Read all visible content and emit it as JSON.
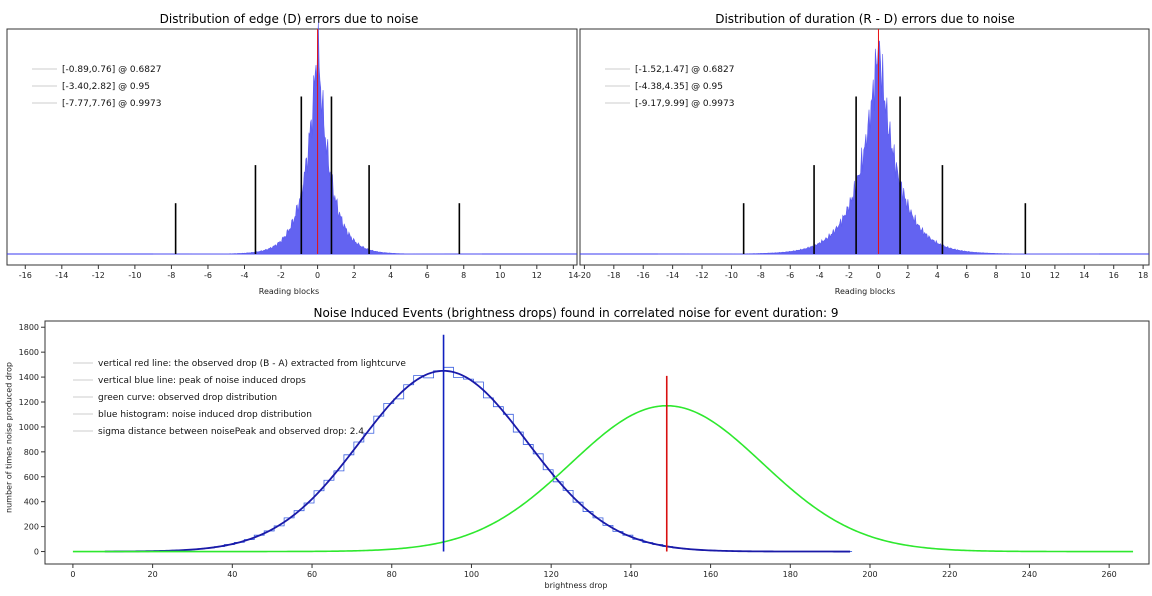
{
  "chart_data": [
    {
      "type": "bar",
      "title": "Distribution of edge (D) errors due to noise",
      "xlabel": "Reading blocks",
      "ylabel": "",
      "xlim": [
        -17,
        14.2
      ],
      "xticks": [
        -16,
        -14,
        -12,
        -10,
        -8,
        -6,
        -4,
        -2,
        0,
        2,
        4,
        6,
        8,
        10,
        12,
        14
      ],
      "histogram": {
        "center": 0,
        "scale": 0.72,
        "range": [
          -9,
          9
        ],
        "color": "#5b5bf0"
      },
      "center_line": {
        "x": 0,
        "color": "#e81010"
      },
      "intervals": [
        {
          "lo": -0.89,
          "hi": 0.76,
          "height": 0.62,
          "label": "[-0.89,0.76] @ 0.6827"
        },
        {
          "lo": -3.4,
          "hi": 2.82,
          "height": 0.35,
          "label": "[-3.40,2.82] @ 0.95"
        },
        {
          "lo": -7.77,
          "hi": 7.76,
          "height": 0.2,
          "label": "[-7.77,7.76] @ 0.9973"
        }
      ]
    },
    {
      "type": "bar",
      "title": "Distribution of duration (R - D) errors due to noise",
      "xlabel": "Reading blocks",
      "ylabel": "",
      "xlim": [
        -20.3,
        18.4
      ],
      "xticks": [
        -20,
        -18,
        -16,
        -14,
        -12,
        -10,
        -8,
        -6,
        -4,
        -2,
        0,
        2,
        4,
        6,
        8,
        10,
        12,
        14,
        16,
        18
      ],
      "histogram": {
        "center": 0,
        "scale": 1.35,
        "range": [
          -15,
          15
        ],
        "color": "#5b5bf0"
      },
      "center_line": {
        "x": 0,
        "color": "#e81010"
      },
      "intervals": [
        {
          "lo": -1.52,
          "hi": 1.47,
          "height": 0.62,
          "label": "[-1.52,1.47] @ 0.6827"
        },
        {
          "lo": -4.38,
          "hi": 4.35,
          "height": 0.35,
          "label": "[-4.38,4.35] @ 0.95"
        },
        {
          "lo": -9.17,
          "hi": 9.99,
          "height": 0.2,
          "label": "[-9.17,9.99] @ 0.9973"
        }
      ]
    },
    {
      "type": "line",
      "title": "Noise Induced Events (brightness drops) found in correlated noise for event duration: 9",
      "xlabel": "brightness drop",
      "ylabel": "number of times noise produced drop",
      "xlim": [
        -7,
        270
      ],
      "ylim": [
        -100,
        1850
      ],
      "xticks": [
        0,
        20,
        40,
        60,
        80,
        100,
        120,
        140,
        160,
        180,
        200,
        220,
        240,
        260
      ],
      "yticks": [
        0,
        200,
        400,
        600,
        800,
        1000,
        1200,
        1400,
        1600,
        1800
      ],
      "series": [
        {
          "name": "blue histogram: noise induced drop distribution",
          "kind": "histogram",
          "color": "#3a5fe0",
          "peak": 93,
          "sigma": 21,
          "amplitude": 1450,
          "range": [
            8,
            195
          ]
        },
        {
          "name": "blue curve",
          "kind": "gaussian",
          "color": "#1a1aa8",
          "peak": 93,
          "sigma": 21,
          "amplitude": 1450,
          "range": [
            8,
            195
          ]
        },
        {
          "name": "green curve: observed drop distribution",
          "kind": "gaussian",
          "color": "#2ee82e",
          "peak": 149,
          "sigma": 24,
          "amplitude": 1170,
          "range": [
            0,
            266
          ]
        }
      ],
      "vlines": [
        {
          "name": "vertical blue line: peak of noise induced drops",
          "x": 93,
          "top": 1740,
          "color": "#1020c0"
        },
        {
          "name": "vertical red line: the observed drop (B - A) extracted from lightcurve",
          "x": 149,
          "top": 1410,
          "color": "#d81010"
        }
      ],
      "legend": [
        "vertical red line: the observed drop (B - A) extracted from lightcurve",
        "vertical blue line: peak of noise induced drops",
        "green curve: observed drop distribution",
        "blue histogram: noise induced drop distribution",
        "sigma distance between noisePeak and observed drop: 2.4"
      ]
    }
  ]
}
